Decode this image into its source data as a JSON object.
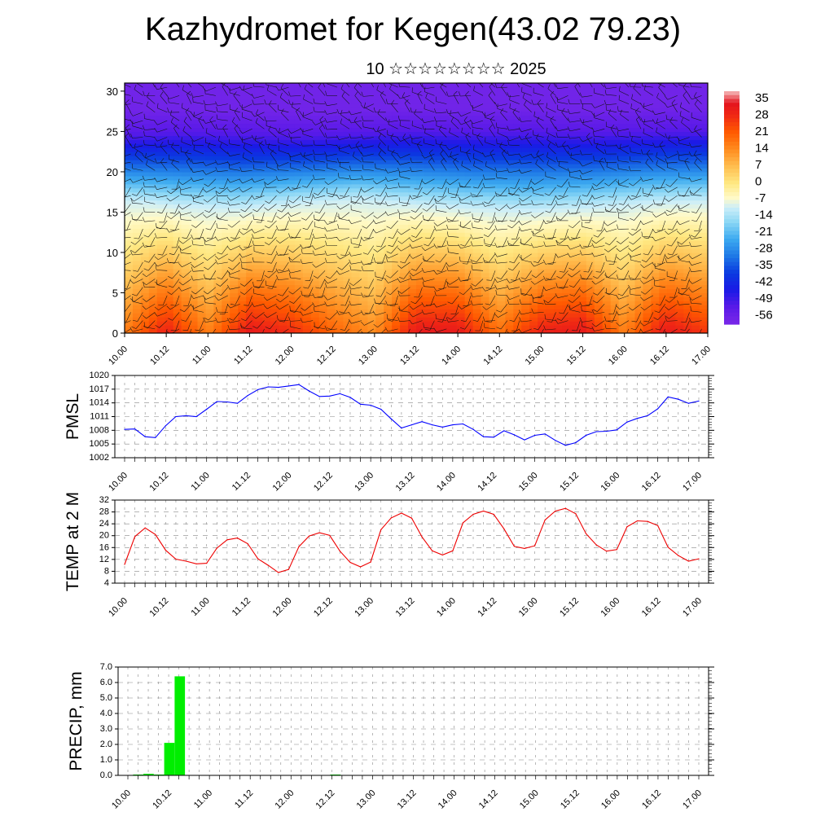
{
  "header": {
    "title": "Kazhydromet for Kegen(43.02 79.23)",
    "subtitle": "10 ☆☆☆☆☆☆☆☆ 2025"
  },
  "x_ticks": [
    "10.00",
    "10.12",
    "11.00",
    "11.12",
    "12.00",
    "12.12",
    "13.00",
    "13.12",
    "14.00",
    "14.12",
    "15.00",
    "15.12",
    "16.00",
    "16.12",
    "17.00"
  ],
  "chart_data": [
    {
      "type": "heatmap",
      "description_var": "temperature cross-section with wind barbs",
      "y_ticks": [
        "0",
        "5",
        "10",
        "15",
        "20",
        "25",
        "30"
      ],
      "ylim": [
        0,
        31
      ],
      "colorbar": {
        "labels": [
          "35",
          "28",
          "21",
          "14",
          "7",
          "0",
          "-7",
          "-14",
          "-21",
          "-28",
          "-35",
          "-42",
          "-49",
          "-56"
        ],
        "colors": [
          "#f4c4c4",
          "#e41a1c",
          "#ff3300",
          "#ff7f00",
          "#ffae40",
          "#ffe070",
          "#fff5b0",
          "#c8ecf8",
          "#40b0f0",
          "#1e78e6",
          "#0a3ae0",
          "#1a1ae6",
          "#4a1ae8",
          "#7a28e8"
        ]
      },
      "surface_temps": [
        14,
        28,
        14,
        30,
        26,
        18,
        12,
        30,
        30,
        16,
        28,
        30,
        14,
        30,
        24
      ],
      "cross_band": [
        [
          0,
          16.5,
          24.5
        ],
        [
          10,
          15.8,
          24.8
        ],
        [
          20,
          15.5,
          24.6
        ],
        [
          30,
          16.2,
          24.4
        ],
        [
          40,
          16.6,
          24.7
        ],
        [
          50,
          16.0,
          25.0
        ],
        [
          60,
          15.5,
          24.8
        ],
        [
          70,
          15.2,
          24.9
        ],
        [
          80,
          15.6,
          24.7
        ],
        [
          90,
          16.2,
          24.9
        ],
        [
          100,
          16.4,
          25.0
        ]
      ]
    },
    {
      "type": "line",
      "ylabel": "PMSL",
      "ylim": [
        1002,
        1020
      ],
      "y_ticks": [
        "1020",
        "1017",
        "1014",
        "1011",
        "1008",
        "1005",
        "1002"
      ],
      "color": "#0000ff",
      "values": [
        1008.2,
        1008.3,
        1006.6,
        1006.4,
        1009.0,
        1011.0,
        1011.2,
        1011.0,
        1012.6,
        1014.3,
        1014.2,
        1013.9,
        1015.6,
        1016.9,
        1017.5,
        1017.4,
        1017.7,
        1018.0,
        1016.6,
        1015.4,
        1015.5,
        1016.0,
        1015.2,
        1013.7,
        1013.5,
        1012.6,
        1010.5,
        1008.5,
        1009.2,
        1009.9,
        1009.2,
        1008.7,
        1009.2,
        1009.4,
        1008.2,
        1006.6,
        1006.5,
        1007.9,
        1007.0,
        1005.9,
        1006.9,
        1007.2,
        1005.8,
        1004.7,
        1005.3,
        1006.9,
        1007.7,
        1007.8,
        1008.1,
        1009.8,
        1010.6,
        1011.2,
        1012.7,
        1015.3,
        1014.8,
        1013.9,
        1014.4
      ]
    },
    {
      "type": "line",
      "ylabel": "TEMP at 2 M",
      "ylim": [
        4,
        32
      ],
      "y_ticks": [
        "32",
        "28",
        "24",
        "20",
        "16",
        "12",
        "8",
        "4"
      ],
      "color": "#ee0000",
      "values": [
        10.3,
        19.7,
        22.6,
        20.4,
        15.1,
        12.1,
        11.4,
        10.5,
        10.7,
        15.8,
        18.6,
        19.2,
        17.3,
        12.2,
        10.0,
        7.6,
        8.6,
        16.3,
        19.9,
        21.0,
        20.1,
        14.8,
        11.0,
        9.5,
        11.1,
        22.0,
        26.0,
        27.6,
        25.9,
        19.6,
        14.9,
        13.5,
        14.9,
        24.3,
        27.2,
        28.3,
        27.2,
        22.3,
        16.4,
        15.7,
        16.6,
        25.3,
        28.3,
        29.2,
        27.4,
        20.7,
        16.9,
        14.8,
        15.3,
        23.0,
        25.0,
        24.8,
        23.4,
        16.1,
        13.3,
        11.4,
        12.2
      ]
    },
    {
      "type": "bar",
      "ylabel": "PRECIP, mm",
      "ylim": [
        0,
        7
      ],
      "y_ticks": [
        "7.0",
        "6.0",
        "5.0",
        "4.0",
        "3.0",
        "2.0",
        "1.0",
        "0.0"
      ],
      "color": "#00ee00",
      "values": [
        0,
        0.05,
        0.1,
        0.05,
        2.1,
        6.4,
        0,
        0,
        0,
        0,
        0,
        0,
        0,
        0,
        0,
        0,
        0,
        0,
        0,
        0,
        0.05,
        0,
        0,
        0,
        0,
        0,
        0,
        0,
        0,
        0,
        0,
        0,
        0,
        0,
        0,
        0,
        0,
        0,
        0,
        0,
        0,
        0,
        0,
        0,
        0,
        0,
        0,
        0,
        0,
        0,
        0,
        0,
        0,
        0,
        0,
        0
      ]
    }
  ]
}
